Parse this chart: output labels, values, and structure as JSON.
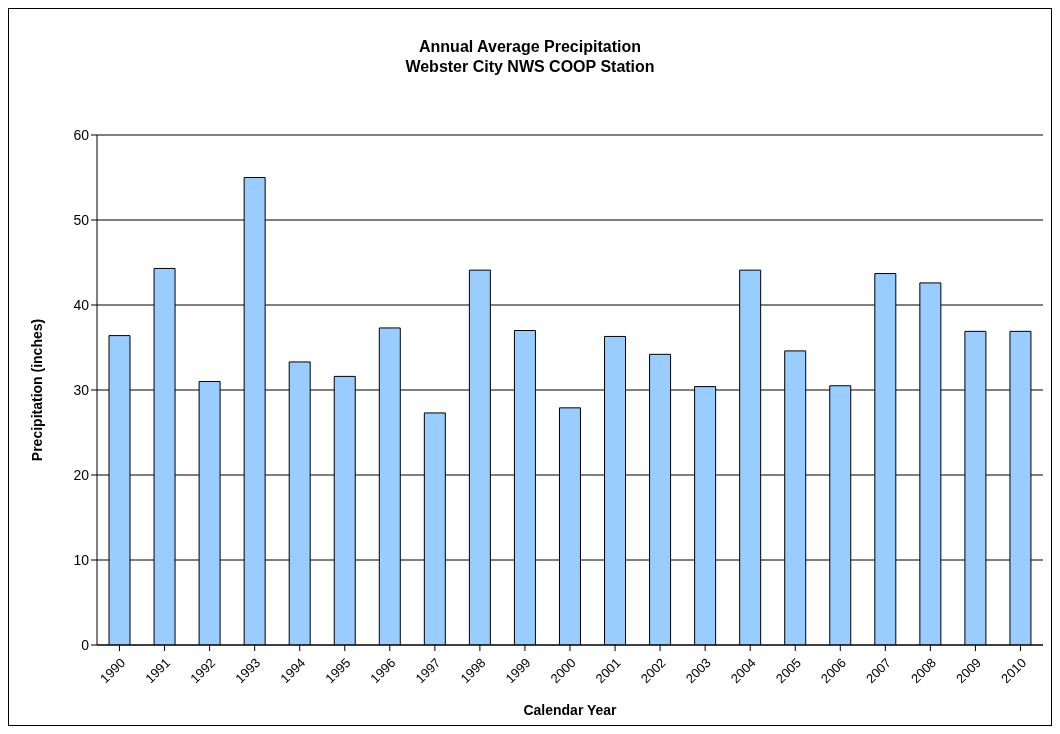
{
  "chart_data": {
    "type": "bar",
    "title": "Annual Average Precipitation",
    "subtitle": "Webster City NWS COOP Station",
    "xlabel": "Calendar Year",
    "ylabel": "Precipitation (inches)",
    "categories": [
      "1990",
      "1991",
      "1992",
      "1993",
      "1994",
      "1995",
      "1996",
      "1997",
      "1998",
      "1999",
      "2000",
      "2001",
      "2002",
      "2003",
      "2004",
      "2005",
      "2006",
      "2007",
      "2008",
      "2009",
      "2010"
    ],
    "values": [
      36.4,
      44.3,
      31.0,
      55.0,
      33.3,
      31.6,
      37.3,
      27.3,
      44.1,
      37.0,
      27.9,
      36.3,
      34.2,
      30.4,
      44.1,
      34.6,
      30.5,
      43.7,
      42.6,
      36.9,
      36.9
    ],
    "color": "#99ccff",
    "ylim": [
      0,
      60
    ],
    "yticks": [
      0,
      10,
      20,
      30,
      40,
      50,
      60
    ],
    "grid": "y"
  }
}
